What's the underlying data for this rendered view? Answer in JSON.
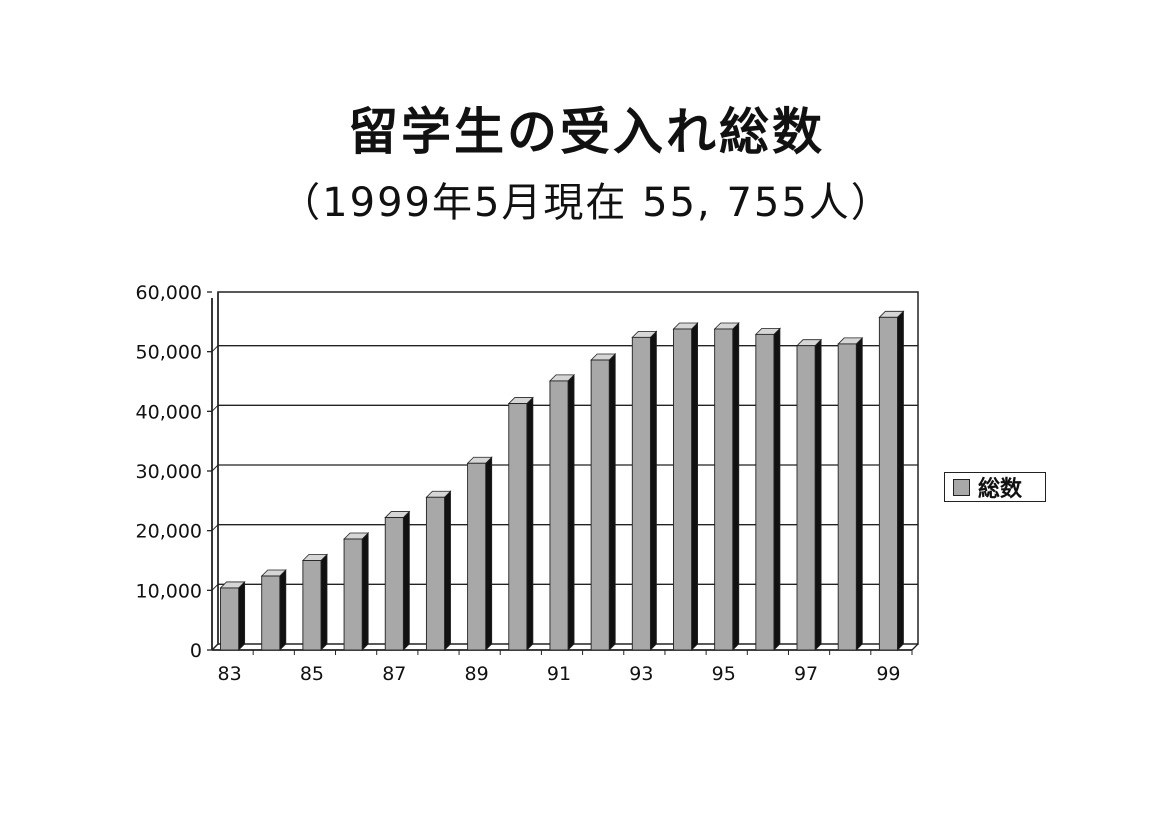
{
  "title": "留学生の受入れ総数",
  "subtitle": "（1999年5月現在 55, 755人）",
  "colors": {
    "bar_face": "#a8a8a8",
    "bar_side": "#111111",
    "bar_top": "#d6d6d6",
    "grid": "#222222"
  },
  "chart_data": {
    "type": "bar",
    "categories": [
      "83",
      "84",
      "85",
      "86",
      "87",
      "88",
      "89",
      "90",
      "91",
      "92",
      "93",
      "94",
      "95",
      "96",
      "97",
      "98",
      "99"
    ],
    "x_tick_labels": [
      "83",
      "85",
      "87",
      "89",
      "91",
      "93",
      "95",
      "97",
      "99"
    ],
    "y_tick_labels": [
      "0",
      "10,000",
      "20,000",
      "30,000",
      "40,000",
      "50,000",
      "60,000"
    ],
    "y_ticks": [
      0,
      10000,
      20000,
      30000,
      40000,
      50000,
      60000
    ],
    "ylim": [
      0,
      60000
    ],
    "grid": true,
    "legend_position": "right",
    "series": [
      {
        "name": "総数",
        "values": [
          10400,
          12400,
          15000,
          18600,
          22200,
          25600,
          31300,
          41300,
          45100,
          48600,
          52400,
          53800,
          53800,
          52900,
          51000,
          51300,
          55755
        ]
      }
    ]
  }
}
